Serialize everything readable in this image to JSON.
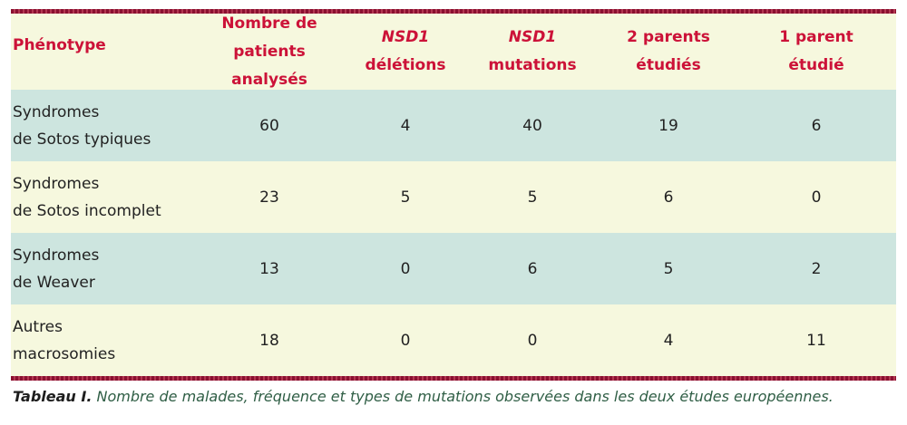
{
  "table": {
    "headers": [
      {
        "line1": "Phénotype",
        "line2": ""
      },
      {
        "line1": "Nombre de patients",
        "line2": "analysés"
      },
      {
        "line1": "NSD1",
        "line2": "délétions"
      },
      {
        "line1": "NSD1",
        "line2": "mutations"
      },
      {
        "line1": "2 parents",
        "line2": "étudiés"
      },
      {
        "line1": "1 parent",
        "line2": "étudié"
      }
    ],
    "rows": [
      {
        "phenotype_line1": "Syndromes",
        "phenotype_line2": "de Sotos typiques",
        "values": [
          "60",
          "4",
          "40",
          "19",
          "6"
        ]
      },
      {
        "phenotype_line1": "Syndromes",
        "phenotype_line2": "de Sotos incomplet",
        "values": [
          "23",
          "5",
          "5",
          "6",
          "0"
        ]
      },
      {
        "phenotype_line1": "Syndromes",
        "phenotype_line2": "de Weaver",
        "values": [
          "13",
          "0",
          "6",
          "5",
          "2"
        ]
      },
      {
        "phenotype_line1": "Autres",
        "phenotype_line2": "macrosomies",
        "values": [
          "18",
          "0",
          "0",
          "4",
          "11"
        ]
      }
    ]
  },
  "caption": {
    "label": "Tableau I.",
    "text": " Nombre de malades, fréquence et types de mutations observées dans les deux études européennes."
  },
  "colors": {
    "header_text": "#cc1238",
    "border": "#8a1030",
    "row_shade": "#cde5df",
    "row_plain": "#f6f8de",
    "caption_text": "#2f5e45"
  }
}
